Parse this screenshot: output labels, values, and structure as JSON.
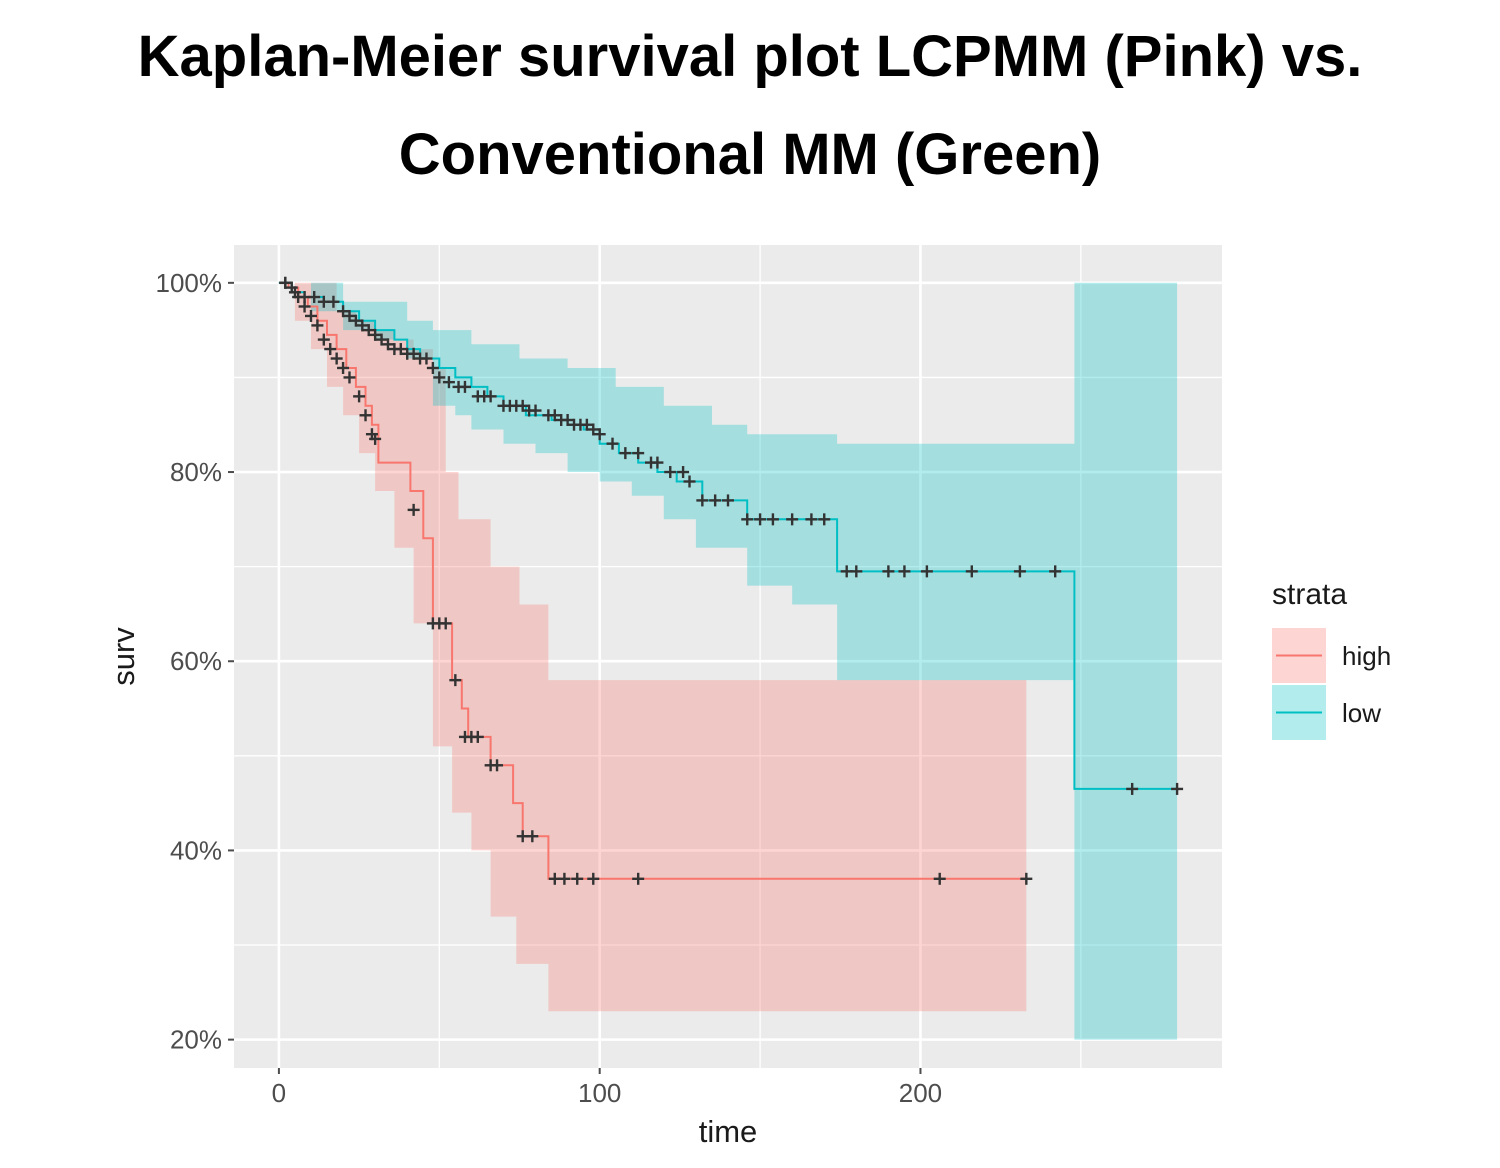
{
  "title_lines": [
    "Kaplan-Meier survival plot LCPMM (Pink) vs.",
    "Conventional MM (Green)"
  ],
  "chart_data": {
    "type": "line",
    "title": "Kaplan-Meier survival plot LCPMM (Pink) vs. Conventional MM (Green)",
    "xlabel": "time",
    "ylabel": "surv",
    "xlim": [
      -14,
      294
    ],
    "ylim": [
      17,
      104
    ],
    "x_ticks": [
      0,
      100,
      200
    ],
    "x_tick_labels": [
      "0",
      "100",
      "200"
    ],
    "y_ticks": [
      20,
      40,
      60,
      80,
      100
    ],
    "y_tick_labels": [
      "20%",
      "40%",
      "60%",
      "80%",
      "100%"
    ],
    "grid": true,
    "legend": {
      "title": "strata",
      "position": "right"
    },
    "colors": {
      "panel": "#ebebeb",
      "grid": "#ffffff",
      "high": "#f8766d",
      "low": "#00bfc4",
      "censor": "#333333"
    },
    "series": [
      {
        "name": "high",
        "color": "#f8766d",
        "step": [
          [
            0,
            100
          ],
          [
            3,
            99.5
          ],
          [
            6,
            98.5
          ],
          [
            9,
            97.5
          ],
          [
            12,
            96
          ],
          [
            15,
            94.5
          ],
          [
            18,
            93
          ],
          [
            21,
            91
          ],
          [
            24,
            89
          ],
          [
            27,
            87
          ],
          [
            29,
            85
          ],
          [
            31,
            81
          ],
          [
            39,
            81
          ],
          [
            41,
            78
          ],
          [
            45,
            73
          ],
          [
            48,
            64
          ],
          [
            54,
            58
          ],
          [
            57,
            55
          ],
          [
            59,
            52
          ],
          [
            66,
            49
          ],
          [
            73,
            45
          ],
          [
            76,
            41.5
          ],
          [
            84,
            37
          ],
          [
            233,
            37
          ]
        ],
        "ci_upper": [
          [
            0,
            100
          ],
          [
            5,
            100
          ],
          [
            12,
            100
          ],
          [
            18,
            97
          ],
          [
            24,
            96
          ],
          [
            30,
            95
          ],
          [
            36,
            94
          ],
          [
            42,
            93
          ],
          [
            48,
            91
          ],
          [
            52,
            80
          ],
          [
            56,
            75
          ],
          [
            66,
            70
          ],
          [
            75,
            66
          ],
          [
            84,
            58
          ],
          [
            233,
            58
          ]
        ],
        "ci_lower": [
          [
            0,
            100
          ],
          [
            5,
            96
          ],
          [
            10,
            93
          ],
          [
            15,
            89
          ],
          [
            20,
            86
          ],
          [
            25,
            82
          ],
          [
            30,
            78
          ],
          [
            36,
            72
          ],
          [
            42,
            64
          ],
          [
            48,
            51
          ],
          [
            54,
            44
          ],
          [
            60,
            40
          ],
          [
            66,
            33
          ],
          [
            74,
            28
          ],
          [
            84,
            23
          ],
          [
            233,
            23
          ]
        ],
        "censor_times": [
          2,
          4,
          6,
          8,
          10,
          12,
          14,
          16,
          18,
          20,
          22,
          25,
          27,
          29,
          30,
          42,
          48,
          50,
          52,
          55,
          58,
          60,
          62,
          66,
          68,
          76,
          79,
          86,
          89,
          93,
          98,
          112,
          206,
          233
        ],
        "censor_surv": [
          100,
          99.5,
          98.5,
          97.5,
          96.5,
          95.5,
          94,
          93,
          92,
          91,
          90,
          88,
          86,
          84,
          83.5,
          76,
          64,
          64,
          64,
          58,
          52,
          52,
          52,
          49,
          49,
          41.5,
          41.5,
          37,
          37,
          37,
          37,
          37,
          37,
          37
        ]
      },
      {
        "name": "low",
        "color": "#00bfc4",
        "step": [
          [
            0,
            100
          ],
          [
            4,
            99
          ],
          [
            8,
            98.5
          ],
          [
            14,
            98
          ],
          [
            20,
            97
          ],
          [
            25,
            96
          ],
          [
            30,
            95
          ],
          [
            36,
            94
          ],
          [
            40,
            93
          ],
          [
            44,
            92
          ],
          [
            50,
            91
          ],
          [
            55,
            90
          ],
          [
            60,
            89
          ],
          [
            65,
            88
          ],
          [
            70,
            87
          ],
          [
            77,
            86
          ],
          [
            85,
            85.5
          ],
          [
            90,
            85
          ],
          [
            95,
            84.5
          ],
          [
            100,
            83
          ],
          [
            106,
            82
          ],
          [
            112,
            81
          ],
          [
            118,
            80
          ],
          [
            124,
            79
          ],
          [
            132,
            77
          ],
          [
            146,
            75
          ],
          [
            172,
            75
          ],
          [
            174,
            69.5
          ],
          [
            246,
            69.5
          ],
          [
            248,
            46.5
          ],
          [
            280,
            46.5
          ]
        ],
        "ci_upper": [
          [
            0,
            100
          ],
          [
            10,
            100
          ],
          [
            20,
            98
          ],
          [
            40,
            96
          ],
          [
            48,
            95
          ],
          [
            60,
            93.5
          ],
          [
            75,
            92
          ],
          [
            90,
            91
          ],
          [
            105,
            89
          ],
          [
            120,
            87
          ],
          [
            135,
            85
          ],
          [
            146,
            84
          ],
          [
            172,
            84
          ],
          [
            174,
            83
          ],
          [
            246,
            83
          ],
          [
            248,
            100
          ],
          [
            280,
            100
          ]
        ],
        "ci_lower": [
          [
            0,
            100
          ],
          [
            10,
            97
          ],
          [
            20,
            95
          ],
          [
            30,
            94
          ],
          [
            40,
            92
          ],
          [
            48,
            87
          ],
          [
            55,
            86
          ],
          [
            60,
            84.5
          ],
          [
            70,
            83
          ],
          [
            80,
            82
          ],
          [
            90,
            80
          ],
          [
            100,
            79
          ],
          [
            110,
            77.5
          ],
          [
            120,
            75
          ],
          [
            130,
            72
          ],
          [
            146,
            68
          ],
          [
            160,
            66
          ],
          [
            172,
            66
          ],
          [
            174,
            58
          ],
          [
            246,
            58
          ],
          [
            248,
            20
          ],
          [
            280,
            20
          ]
        ],
        "censor_times": [
          2,
          5,
          8,
          11,
          14,
          17,
          20,
          22,
          24,
          26,
          28,
          30,
          32,
          34,
          36,
          38,
          40,
          42,
          44,
          46,
          48,
          50,
          53,
          56,
          58,
          62,
          64,
          66,
          70,
          72,
          74,
          76,
          78,
          80,
          84,
          86,
          88,
          90,
          92,
          94,
          96,
          98,
          100,
          104,
          108,
          112,
          116,
          118,
          122,
          126,
          128,
          132,
          136,
          140,
          146,
          150,
          154,
          160,
          166,
          170,
          177,
          180,
          190,
          195,
          202,
          216,
          231,
          242,
          266,
          280
        ],
        "censor_surv": [
          100,
          99,
          98.5,
          98.5,
          98,
          98,
          97,
          96.5,
          96,
          95.5,
          95,
          94.5,
          94,
          93.5,
          93,
          93,
          92.5,
          92.5,
          92,
          92,
          91,
          90,
          89.5,
          89,
          89,
          88,
          88,
          88,
          87,
          87,
          87,
          87,
          86.5,
          86.5,
          86,
          86,
          85.5,
          85.5,
          85,
          85,
          85,
          84.5,
          84,
          83,
          82,
          82,
          81,
          81,
          80,
          80,
          79,
          77,
          77,
          77,
          75,
          75,
          75,
          75,
          75,
          75,
          69.5,
          69.5,
          69.5,
          69.5,
          69.5,
          69.5,
          69.5,
          69.5,
          46.5,
          46.5
        ]
      }
    ]
  }
}
